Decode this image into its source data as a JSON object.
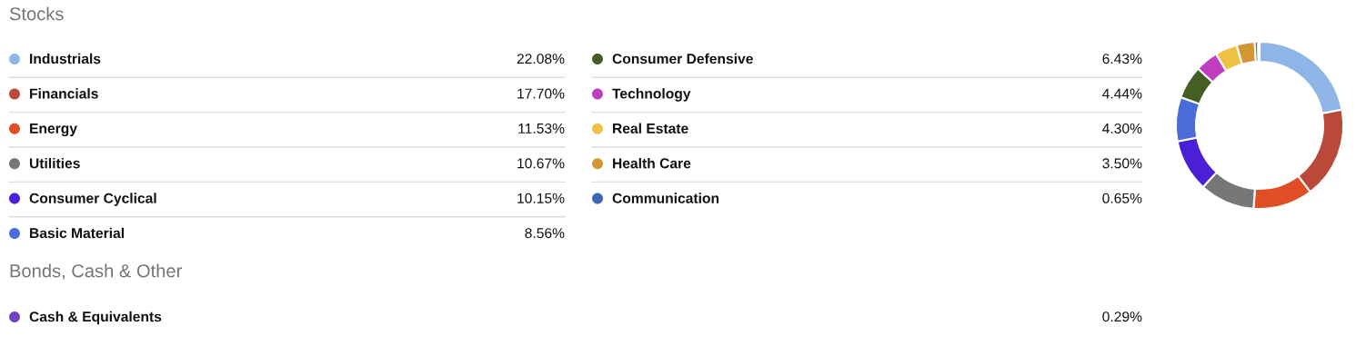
{
  "chart_data": {
    "type": "donut",
    "title": "Stocks",
    "categories": [
      "Industrials",
      "Financials",
      "Energy",
      "Utilities",
      "Consumer Cyclical",
      "Basic Material",
      "Consumer Defensive",
      "Technology",
      "Real Estate",
      "Health Care",
      "Communication",
      "Cash & Equivalents"
    ],
    "values": [
      22.08,
      17.7,
      11.53,
      10.67,
      10.15,
      8.56,
      6.43,
      4.44,
      4.3,
      3.5,
      0.65,
      0.29
    ],
    "value_labels": [
      "22.08%",
      "17.70%",
      "11.53%",
      "10.67%",
      "10.15%",
      "8.56%",
      "6.43%",
      "4.44%",
      "4.30%",
      "3.50%",
      "0.65%",
      "0.29%"
    ],
    "colors": [
      "#8fb4e6",
      "#b94a3a",
      "#e04e28",
      "#777777",
      "#4a1fd6",
      "#4a6bd8",
      "#455e23",
      "#bf3fc0",
      "#efc246",
      "#d39634",
      "#3d66b3",
      "#7044c0"
    ],
    "legend": "left",
    "annotations": [
      "Bonds, Cash & Other"
    ]
  }
}
